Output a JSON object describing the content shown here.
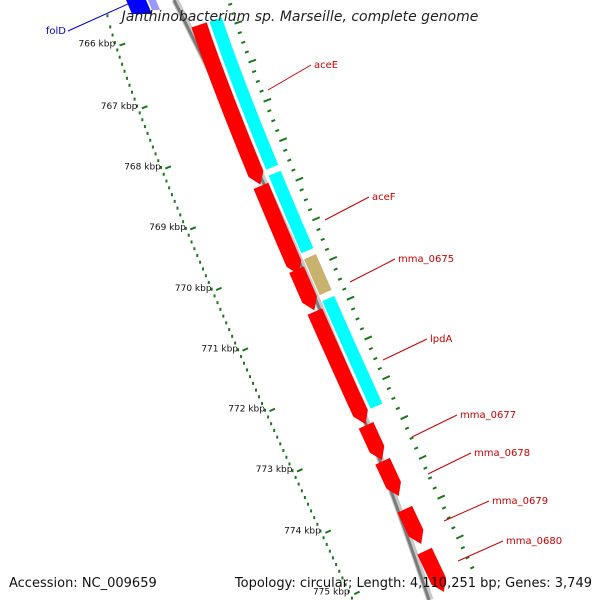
{
  "title": "Janthinobacterium sp. Marseille, complete genome",
  "footer": {
    "accession": "Accession: NC_009659",
    "topology": "Topology: circular; Length: 4,110,251 bp; Genes: 3,749"
  },
  "colors": {
    "backbone": "#888888",
    "forward_cds": "#ff0000",
    "reverse_cds": "#0000ff",
    "complement_track": "#00ffff",
    "pseudo_track": "#c8b26e",
    "gc_ticks": "#1a7a1a",
    "label_forward": "#cc0000",
    "label_reverse": "#0000cc"
  },
  "ruler": {
    "unit": "kbp",
    "ticks": [
      "766 kbp",
      "767 kbp",
      "768 kbp",
      "769 kbp",
      "770 kbp",
      "771 kbp",
      "772 kbp",
      "773 kbp",
      "774 kbp",
      "775 kbp"
    ]
  },
  "genes": [
    {
      "name": "folD",
      "strand": "reverse"
    },
    {
      "name": "aceE",
      "strand": "forward"
    },
    {
      "name": "aceF",
      "strand": "forward"
    },
    {
      "name": "mma_0675",
      "strand": "forward"
    },
    {
      "name": "lpdA",
      "strand": "forward"
    },
    {
      "name": "mma_0677",
      "strand": "forward"
    },
    {
      "name": "mma_0678",
      "strand": "forward"
    },
    {
      "name": "mma_0679",
      "strand": "forward"
    },
    {
      "name": "mma_0680",
      "strand": "forward"
    }
  ]
}
